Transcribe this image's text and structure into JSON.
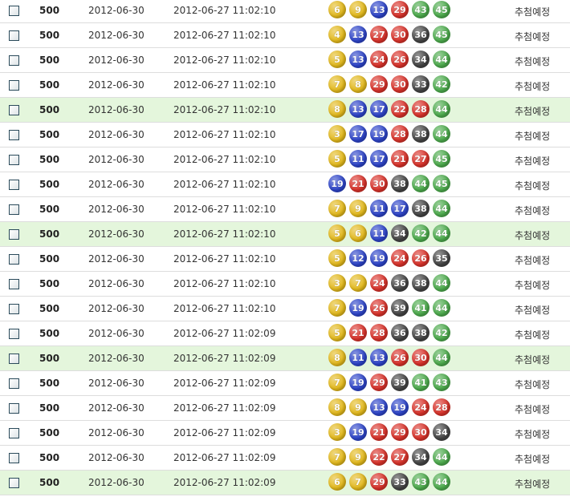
{
  "ball_colors": {
    "1-10": "#e2b81c",
    "11-20": "#2d44c8",
    "21-30": "#d8322a",
    "31-40": "#444444",
    "41-45": "#4caa4c"
  },
  "highlight_color": "#e4f6dc",
  "rows": [
    {
      "round": "500",
      "draw_date": "2012-06-30",
      "registered": "2012-06-27 11:02:10",
      "numbers": [
        6,
        9,
        13,
        29,
        43,
        45
      ],
      "status": "추첨예정",
      "highlight": false
    },
    {
      "round": "500",
      "draw_date": "2012-06-30",
      "registered": "2012-06-27 11:02:10",
      "numbers": [
        4,
        13,
        27,
        30,
        36,
        45
      ],
      "status": "추첨예정",
      "highlight": false
    },
    {
      "round": "500",
      "draw_date": "2012-06-30",
      "registered": "2012-06-27 11:02:10",
      "numbers": [
        5,
        13,
        24,
        26,
        34,
        44
      ],
      "status": "추첨예정",
      "highlight": false
    },
    {
      "round": "500",
      "draw_date": "2012-06-30",
      "registered": "2012-06-27 11:02:10",
      "numbers": [
        7,
        8,
        29,
        30,
        33,
        42
      ],
      "status": "추첨예정",
      "highlight": false
    },
    {
      "round": "500",
      "draw_date": "2012-06-30",
      "registered": "2012-06-27 11:02:10",
      "numbers": [
        8,
        13,
        17,
        22,
        28,
        44
      ],
      "status": "추첨예정",
      "highlight": true
    },
    {
      "round": "500",
      "draw_date": "2012-06-30",
      "registered": "2012-06-27 11:02:10",
      "numbers": [
        3,
        17,
        19,
        28,
        38,
        44
      ],
      "status": "추첨예정",
      "highlight": false
    },
    {
      "round": "500",
      "draw_date": "2012-06-30",
      "registered": "2012-06-27 11:02:10",
      "numbers": [
        5,
        11,
        17,
        21,
        27,
        45
      ],
      "status": "추첨예정",
      "highlight": false
    },
    {
      "round": "500",
      "draw_date": "2012-06-30",
      "registered": "2012-06-27 11:02:10",
      "numbers": [
        19,
        21,
        30,
        38,
        44,
        45
      ],
      "status": "추첨예정",
      "highlight": false
    },
    {
      "round": "500",
      "draw_date": "2012-06-30",
      "registered": "2012-06-27 11:02:10",
      "numbers": [
        7,
        9,
        11,
        17,
        38,
        44
      ],
      "status": "추첨예정",
      "highlight": false
    },
    {
      "round": "500",
      "draw_date": "2012-06-30",
      "registered": "2012-06-27 11:02:10",
      "numbers": [
        5,
        6,
        11,
        34,
        42,
        44
      ],
      "status": "추첨예정",
      "highlight": true
    },
    {
      "round": "500",
      "draw_date": "2012-06-30",
      "registered": "2012-06-27 11:02:10",
      "numbers": [
        5,
        12,
        19,
        24,
        26,
        35
      ],
      "status": "추첨예정",
      "highlight": false
    },
    {
      "round": "500",
      "draw_date": "2012-06-30",
      "registered": "2012-06-27 11:02:10",
      "numbers": [
        3,
        7,
        24,
        36,
        38,
        44
      ],
      "status": "추첨예정",
      "highlight": false
    },
    {
      "round": "500",
      "draw_date": "2012-06-30",
      "registered": "2012-06-27 11:02:10",
      "numbers": [
        7,
        19,
        26,
        39,
        41,
        44
      ],
      "status": "추첨예정",
      "highlight": false
    },
    {
      "round": "500",
      "draw_date": "2012-06-30",
      "registered": "2012-06-27 11:02:09",
      "numbers": [
        5,
        21,
        28,
        36,
        38,
        42
      ],
      "status": "추첨예정",
      "highlight": false
    },
    {
      "round": "500",
      "draw_date": "2012-06-30",
      "registered": "2012-06-27 11:02:09",
      "numbers": [
        8,
        11,
        13,
        26,
        30,
        44
      ],
      "status": "추첨예정",
      "highlight": true
    },
    {
      "round": "500",
      "draw_date": "2012-06-30",
      "registered": "2012-06-27 11:02:09",
      "numbers": [
        7,
        19,
        29,
        39,
        41,
        43
      ],
      "status": "추첨예정",
      "highlight": false
    },
    {
      "round": "500",
      "draw_date": "2012-06-30",
      "registered": "2012-06-27 11:02:09",
      "numbers": [
        8,
        9,
        13,
        19,
        24,
        28
      ],
      "status": "추첨예정",
      "highlight": false
    },
    {
      "round": "500",
      "draw_date": "2012-06-30",
      "registered": "2012-06-27 11:02:09",
      "numbers": [
        3,
        19,
        21,
        29,
        30,
        34
      ],
      "status": "추첨예정",
      "highlight": false
    },
    {
      "round": "500",
      "draw_date": "2012-06-30",
      "registered": "2012-06-27 11:02:09",
      "numbers": [
        7,
        9,
        22,
        27,
        34,
        44
      ],
      "status": "추첨예정",
      "highlight": false
    },
    {
      "round": "500",
      "draw_date": "2012-06-30",
      "registered": "2012-06-27 11:02:09",
      "numbers": [
        6,
        7,
        29,
        33,
        43,
        44
      ],
      "status": "추첨예정",
      "highlight": true
    }
  ]
}
